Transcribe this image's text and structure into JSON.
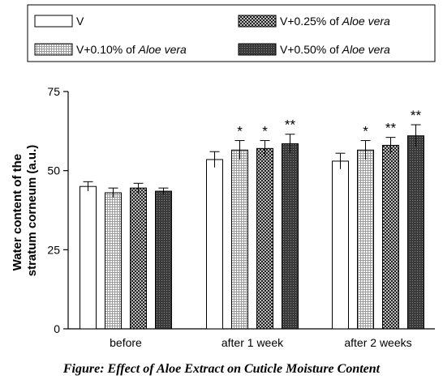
{
  "chart_data": {
    "type": "bar",
    "ylabel_lines": [
      "Water content of the",
      "stratum corneum (a.u.)"
    ],
    "ylim": [
      0,
      75
    ],
    "yticks": [
      0,
      25,
      50,
      75
    ],
    "grid": false,
    "legend_position": "top",
    "categories": [
      "before",
      "after 1 week",
      "after 2 weeks"
    ],
    "series": [
      {
        "legend_plain": "V",
        "legend_italic": "",
        "pattern": "white",
        "values": [
          45,
          53.5,
          53
        ],
        "errors": [
          1.5,
          2.5,
          2.5
        ],
        "significance": [
          "",
          "",
          ""
        ]
      },
      {
        "legend_plain": "V+0.10% of ",
        "legend_italic": "Aloe vera",
        "pattern": "fine-grid",
        "values": [
          43,
          56.5,
          56.5
        ],
        "errors": [
          1.5,
          3,
          3
        ],
        "significance": [
          "",
          "*",
          "*"
        ]
      },
      {
        "legend_plain": "V+0.25% of ",
        "legend_italic": "Aloe vera",
        "pattern": "checker",
        "values": [
          44.5,
          57,
          58
        ],
        "errors": [
          1.5,
          2.5,
          2.5
        ],
        "significance": [
          "",
          "*",
          "**"
        ]
      },
      {
        "legend_plain": "V+0.50% of ",
        "legend_italic": "Aloe vera",
        "pattern": "dark-dots",
        "values": [
          43.5,
          58.5,
          61
        ],
        "errors": [
          1,
          3,
          3.5
        ],
        "significance": [
          "",
          "**",
          "**"
        ]
      }
    ]
  },
  "caption": "Figure: Effect of Aloe Extract on Cuticle Moisture Content",
  "colors": {
    "ink": "#000000",
    "background": "#ffffff"
  }
}
